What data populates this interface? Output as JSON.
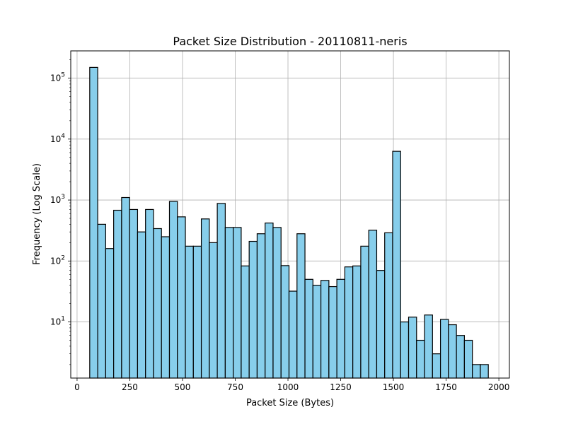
{
  "chart_data": {
    "type": "bar",
    "title": "Packet Size Distribution - 20110811-neris",
    "xlabel": "Packet Size (Bytes)",
    "ylabel": "Frequency (Log Scale)",
    "yscale": "log",
    "xlim": [
      -30,
      2050
    ],
    "ylim": [
      1.2,
      280000
    ],
    "grid": true,
    "bar_color": "#87ceeb",
    "edge_color": "#000000",
    "grid_color": "#b0b0b0",
    "x_ticks": [
      {
        "value": 0,
        "label": "0"
      },
      {
        "value": 250,
        "label": "250"
      },
      {
        "value": 500,
        "label": "500"
      },
      {
        "value": 750,
        "label": "750"
      },
      {
        "value": 1000,
        "label": "1000"
      },
      {
        "value": 1250,
        "label": "1250"
      },
      {
        "value": 1500,
        "label": "1500"
      },
      {
        "value": 1750,
        "label": "1750"
      },
      {
        "value": 2000,
        "label": "2000"
      }
    ],
    "y_ticks": [
      {
        "value": 10,
        "base": "10",
        "exp": "1"
      },
      {
        "value": 100,
        "base": "10",
        "exp": "2"
      },
      {
        "value": 1000,
        "base": "10",
        "exp": "3"
      },
      {
        "value": 10000,
        "base": "10",
        "exp": "4"
      },
      {
        "value": 100000,
        "base": "10",
        "exp": "5"
      }
    ],
    "bins": {
      "edges": [
        60,
        97.8,
        135.6,
        173.4,
        211.2,
        249,
        286.8,
        324.6,
        362.4,
        400.2,
        438,
        475.8,
        513.6,
        551.4,
        589.2,
        627,
        664.8,
        702.6,
        740.4,
        778.2,
        816,
        853.8,
        891.6,
        929.4,
        967.2,
        1005,
        1042.8,
        1080.6,
        1118.4,
        1156.2,
        1194,
        1231.8,
        1269.6,
        1307.4,
        1345.2,
        1383,
        1420.8,
        1458.6,
        1496.4,
        1534.2,
        1572,
        1609.8,
        1647.6,
        1685.4,
        1723.2,
        1761,
        1798.8,
        1836.6,
        1874.4,
        1912.2,
        1950
      ],
      "counts": [
        150000,
        400,
        160,
        680,
        1100,
        700,
        300,
        700,
        340,
        250,
        950,
        530,
        175,
        175,
        490,
        200,
        880,
        355,
        355,
        83,
        210,
        280,
        420,
        355,
        84,
        32,
        280,
        50,
        40,
        48,
        38,
        50,
        80,
        83,
        175,
        320,
        70,
        290,
        6300,
        10,
        12,
        5,
        13,
        3,
        11,
        9,
        6,
        5,
        2,
        2
      ]
    }
  }
}
